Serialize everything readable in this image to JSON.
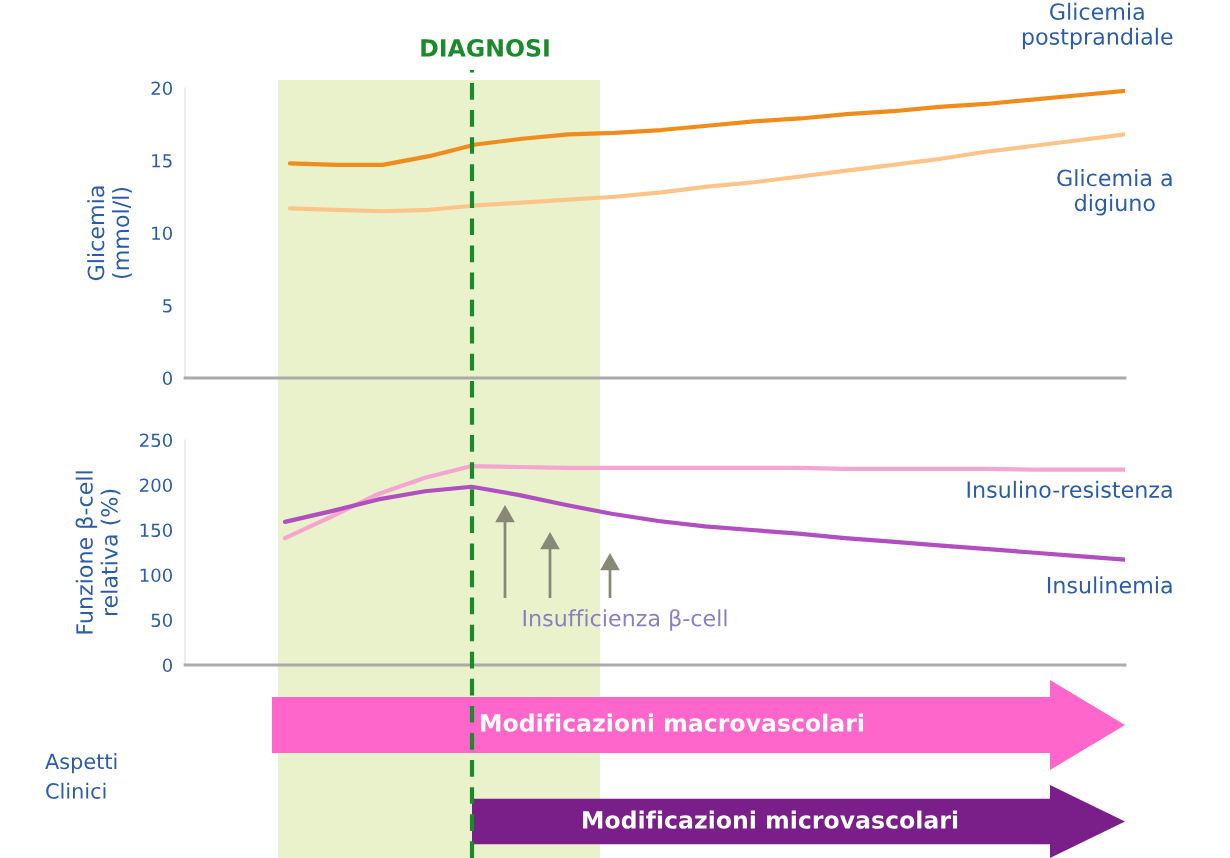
{
  "chart_data": [
    {
      "type": "line",
      "ylabel": "Glicemia\n(mmol/l)",
      "tick_labels": "y",
      "categories": [
        null,
        null,
        null,
        null,
        null,
        null,
        null,
        null,
        null,
        null,
        null,
        null,
        null,
        null,
        null,
        null,
        null,
        null,
        null
      ],
      "series": [
        {
          "name": "Glicemia\npostprandiale",
          "color": "#f08c1c",
          "values": [
            14.8,
            14.7,
            14.7,
            15.3,
            16.1,
            16.5,
            16.8,
            16.9,
            17.1,
            17.4,
            17.7,
            17.9,
            18.2,
            18.4,
            18.7,
            18.9,
            19.2,
            19.5,
            19.8
          ]
        },
        {
          "name": "Glicemia a\ndigiuno",
          "color": "#fbc58a",
          "values": [
            11.7,
            11.6,
            11.5,
            11.6,
            11.9,
            12.1,
            12.3,
            12.5,
            12.8,
            13.2,
            13.5,
            13.9,
            14.3,
            14.7,
            15.1,
            15.6,
            16.0,
            16.4,
            16.8
          ]
        }
      ],
      "ylim": [
        0,
        20
      ],
      "yticks": [
        0,
        5,
        10,
        15,
        20
      ],
      "annotations": [
        "DIAGNOSI"
      ]
    },
    {
      "type": "line",
      "ylabel": "Funzione β-cell\nrelativa (%)",
      "tick_labels": "y",
      "categories": [
        null,
        null,
        null,
        null,
        null,
        null,
        null,
        null,
        null,
        null,
        null,
        null,
        null,
        null,
        null,
        null,
        null,
        null,
        null
      ],
      "series": [
        {
          "name": "Insulino-resistenza",
          "color": "#f4a6d0",
          "values": [
            141,
            165,
            190,
            208,
            221,
            220,
            219,
            219,
            219,
            219,
            219,
            219,
            218,
            218,
            218,
            218,
            217,
            217,
            217
          ]
        },
        {
          "name": "Insulinemia",
          "color": "#b04fc0",
          "values": [
            159,
            171,
            184,
            193,
            198,
            189,
            178,
            168,
            160,
            154,
            150,
            146,
            141,
            137,
            133,
            129,
            125,
            121,
            117
          ]
        }
      ],
      "ylim": [
        0,
        250
      ],
      "yticks": [
        0,
        50,
        100,
        150,
        200,
        250
      ],
      "annotations": [
        "Insufficienza β-cell",
        "Aspetti\nClinici",
        "Modificazioni macrovascolari",
        "Modificazioni microvascolari"
      ]
    }
  ]
}
